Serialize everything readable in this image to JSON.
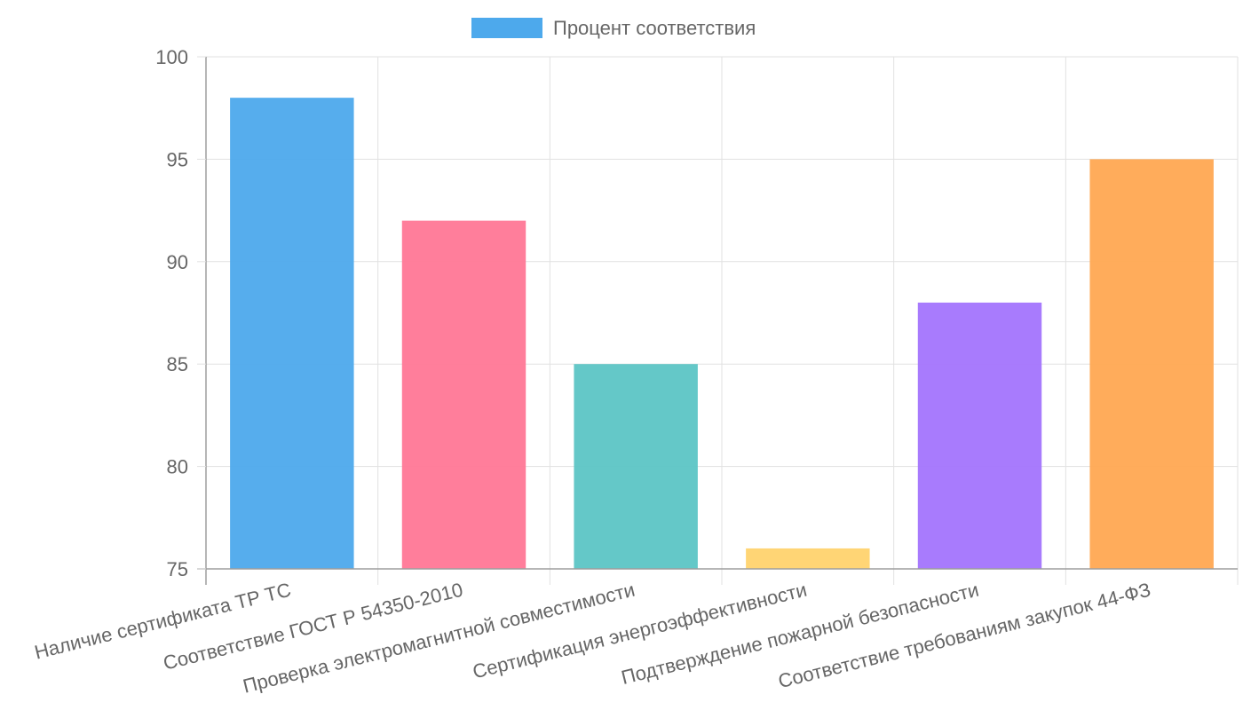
{
  "chart_data": {
    "type": "bar",
    "legend": {
      "label": "Процент соответствия",
      "position": "top",
      "swatch_color": "#4DA9EC"
    },
    "categories": [
      "Наличие сертификата ТР ТС",
      "Соответствие ГОСТ Р 54350-2010",
      "Проверка электромагнитной совместимости",
      "Сертификация энергоэффективности",
      "Подтверждение пожарной безопасности",
      "Соответствие требованиям закупок 44-ФЗ"
    ],
    "series": [
      {
        "name": "Процент соответствия",
        "values": [
          98,
          92,
          85,
          76,
          88,
          95
        ]
      }
    ],
    "bar_colors": [
      "#4DA9EC",
      "#FF7796",
      "#5CC5C5",
      "#FFD36E",
      "#A374FD",
      "#FFA852"
    ],
    "ylim": [
      75,
      100
    ],
    "yticks": [
      75,
      80,
      85,
      90,
      95,
      100
    ],
    "grid": true,
    "xlabel": "",
    "ylabel": "",
    "title": ""
  }
}
